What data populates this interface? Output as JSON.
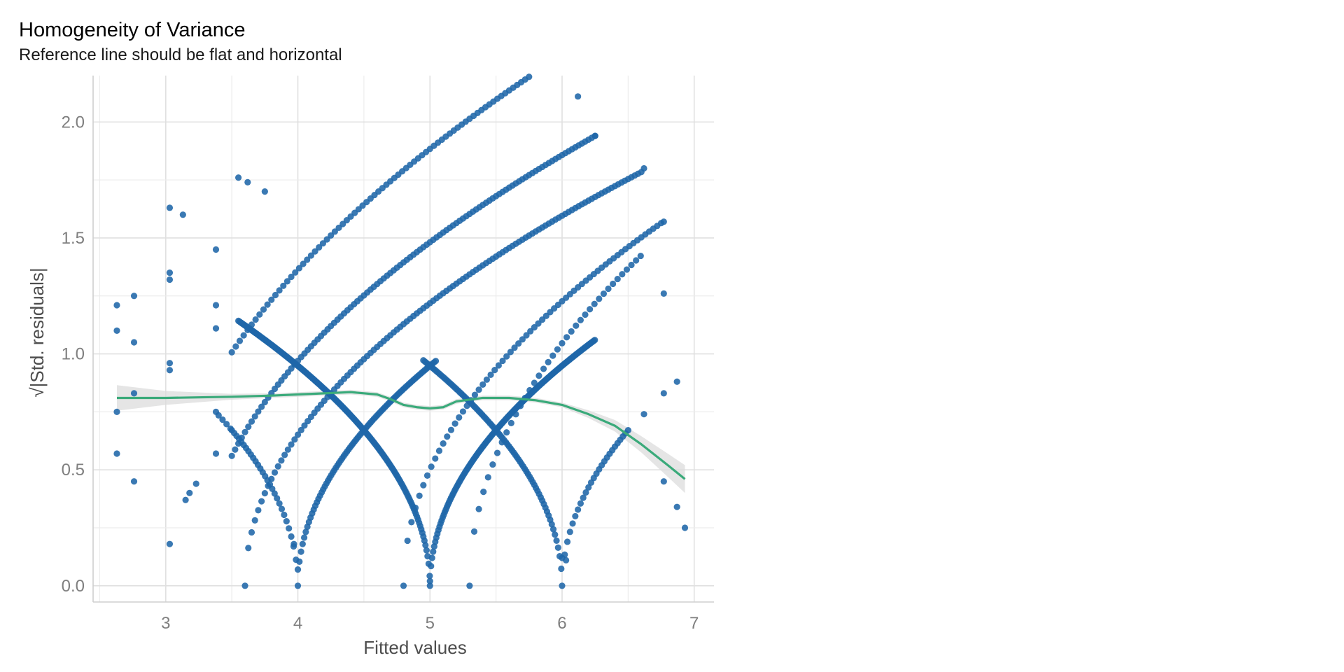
{
  "chart_data": {
    "type": "scatter",
    "title": "Homogeneity of Variance",
    "subtitle": "Reference line should be flat and horizontal",
    "xlabel": "Fitted values",
    "ylabel": "√|Std. residuals|",
    "xlim": [
      2.45,
      7.15
    ],
    "ylim": [
      -0.07,
      2.2
    ],
    "x_ticks": [
      3,
      4,
      5,
      6,
      7
    ],
    "y_ticks": [
      0.0,
      0.5,
      1.0,
      1.5,
      2.0
    ],
    "x_tick_labels": [
      "3",
      "4",
      "5",
      "6",
      "7"
    ],
    "y_tick_labels": [
      "0.0",
      "0.5",
      "1.0",
      "1.5",
      "2.0"
    ],
    "grid": true,
    "legend": "none",
    "point_color": "#1F66A8",
    "smooth_color": "#3AAA7A",
    "band_color": "#DCDCDC",
    "points_description": "residual pattern: eight curved arcs of points with apexes at fitted values 4, 5, 6 and crossing points near 3.5, 4.5, 5.5, 6.5",
    "smooth_line": {
      "x": [
        2.63,
        3.0,
        3.5,
        3.8,
        4.0,
        4.2,
        4.4,
        4.6,
        4.7,
        4.8,
        4.9,
        5.0,
        5.1,
        5.2,
        5.4,
        5.6,
        5.8,
        6.0,
        6.2,
        6.4,
        6.6,
        6.8,
        6.93
      ],
      "y": [
        0.81,
        0.81,
        0.815,
        0.82,
        0.825,
        0.83,
        0.835,
        0.825,
        0.805,
        0.78,
        0.77,
        0.765,
        0.77,
        0.795,
        0.81,
        0.81,
        0.8,
        0.78,
        0.74,
        0.69,
        0.61,
        0.52,
        0.46
      ]
    },
    "band_halfwidth": {
      "x": [
        2.63,
        2.9,
        3.2,
        3.6,
        6.0,
        6.3,
        6.6,
        6.8,
        6.93
      ],
      "y": [
        0.055,
        0.035,
        0.02,
        0.01,
        0.01,
        0.02,
        0.035,
        0.05,
        0.06
      ]
    }
  }
}
